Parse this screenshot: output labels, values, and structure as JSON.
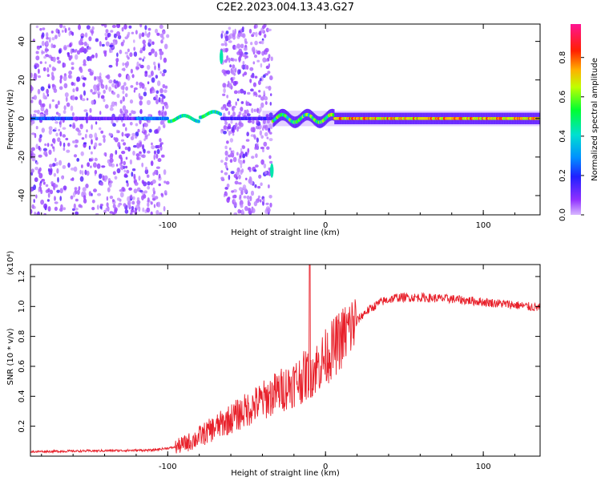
{
  "page": {
    "title": "C2E2.2023.004.13.43.G27"
  },
  "colorbar": {
    "label": "Normalized spectral amplitude",
    "ticks": [
      "0.0",
      "0.2",
      "0.4",
      "0.6",
      "0.8"
    ],
    "tick_values": [
      0.0,
      0.2,
      0.4,
      0.6,
      0.8
    ],
    "range": [
      0,
      0.97
    ],
    "colors": [
      "#c9a0ff",
      "#8000ff",
      "#0000ff",
      "#00c8ff",
      "#00ff40",
      "#c8ff00",
      "#ff8000",
      "#ff0000",
      "#ff1493"
    ]
  },
  "chart_data": [
    {
      "type": "heatmap",
      "xlabel": "Height of straight line (km)",
      "ylabel": "Frequency (Hz)",
      "xlim": [
        -187,
        136
      ],
      "ylim": [
        -50,
        49
      ],
      "x_ticks": [
        -100,
        0,
        100
      ],
      "x_tick_labels": [
        "-100",
        "0",
        "100"
      ],
      "y_ticks": [
        -40,
        -20,
        0,
        20,
        40
      ],
      "y_tick_labels": [
        "-40",
        "-20",
        "0",
        "20",
        "40"
      ],
      "features": [
        {
          "name": "broadband-scatter",
          "x_range": [
            -187,
            -100
          ],
          "f_range": [
            -50,
            49
          ],
          "amplitude": 0.15
        },
        {
          "name": "broadband-scatter",
          "x_range": [
            -66,
            -34
          ],
          "f_range": [
            -50,
            49
          ],
          "amplitude": 0.15
        },
        {
          "name": "narrow-line",
          "x_range": [
            -187,
            136
          ],
          "f_center": 0,
          "amplitude": 0.85
        },
        {
          "name": "spike",
          "x": -66,
          "f": 32,
          "amplitude": 0.45
        },
        {
          "name": "spike",
          "x": -34,
          "f": -27,
          "amplitude": 0.45
        }
      ]
    },
    {
      "type": "line",
      "xlabel": "Height of straight line (km)",
      "ylabel": "SNR (10 * v/v)",
      "y_multiplier": "(x10⁴)",
      "xlim": [
        -187,
        136
      ],
      "ylim": [
        0,
        1.28
      ],
      "x_ticks": [
        -100,
        0,
        100
      ],
      "x_tick_labels": [
        "-100",
        "0",
        "100"
      ],
      "y_ticks": [
        0.2,
        0.4,
        0.6,
        0.8,
        1.0,
        1.2
      ],
      "y_tick_labels": [
        "0.2",
        "0.4",
        "0.6",
        "0.8",
        "1.0",
        "1.2"
      ],
      "color": "#e8202a",
      "series": [
        {
          "name": "SNR",
          "trend": [
            [
              -187,
              0.03
            ],
            [
              -150,
              0.035
            ],
            [
              -110,
              0.04
            ],
            [
              -95,
              0.06
            ],
            [
              -85,
              0.1
            ],
            [
              -75,
              0.16
            ],
            [
              -65,
              0.22
            ],
            [
              -55,
              0.28
            ],
            [
              -45,
              0.34
            ],
            [
              -35,
              0.4
            ],
            [
              -25,
              0.46
            ],
            [
              -15,
              0.52
            ],
            [
              -5,
              0.6
            ],
            [
              5,
              0.72
            ],
            [
              15,
              0.85
            ],
            [
              25,
              0.96
            ],
            [
              35,
              1.03
            ],
            [
              45,
              1.06
            ],
            [
              60,
              1.06
            ],
            [
              80,
              1.05
            ],
            [
              100,
              1.03
            ],
            [
              120,
              1.01
            ],
            [
              136,
              0.99
            ]
          ],
          "peaks": [
            {
              "x": -10,
              "y": 1.28
            }
          ]
        }
      ]
    }
  ]
}
